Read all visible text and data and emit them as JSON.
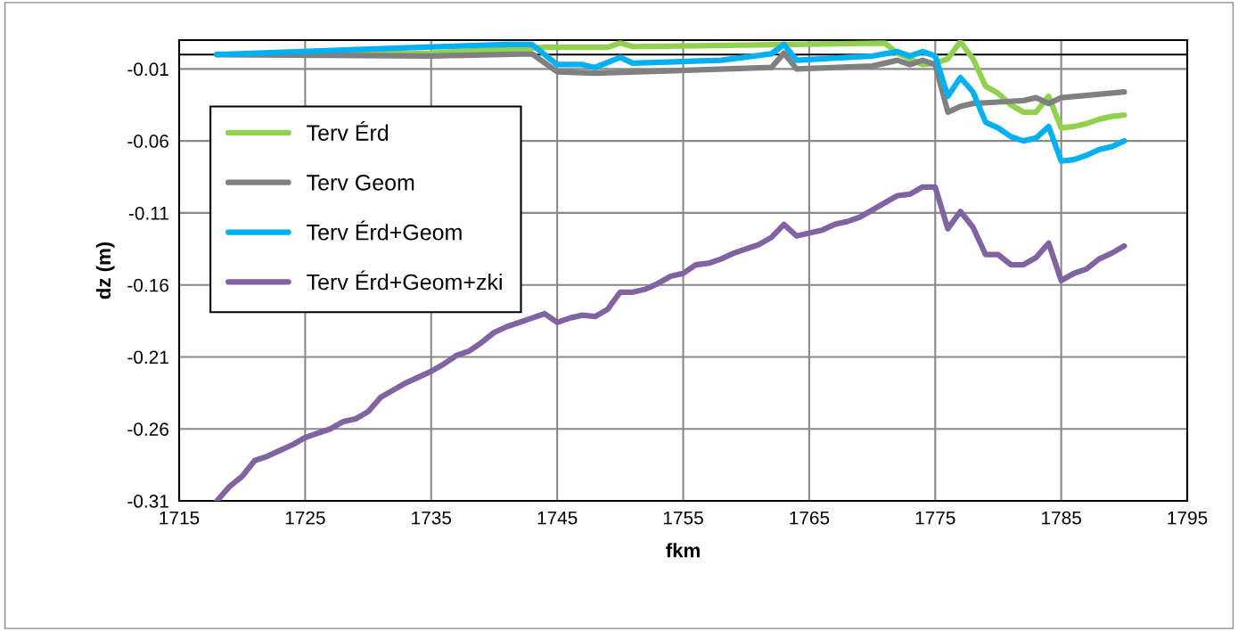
{
  "chart_data": {
    "type": "line",
    "xlabel": "fkm",
    "ylabel": "dz (m)",
    "xlim": [
      1715,
      1795
    ],
    "xticks": [
      1715,
      1725,
      1735,
      1745,
      1755,
      1765,
      1775,
      1785,
      1795
    ],
    "ylim": [
      -0.31,
      0.01
    ],
    "yticks": [
      -0.31,
      -0.26,
      -0.21,
      -0.16,
      -0.11,
      -0.06,
      -0.01
    ],
    "grid": true,
    "legend": "top left",
    "marker": "none",
    "line_style": "solid",
    "ref_lines": [
      {
        "axis": "y",
        "value": 0,
        "color": "#000000"
      }
    ],
    "series": [
      {
        "name": "Terv Érd",
        "color": "#92d050",
        "x": [
          1718,
          1735,
          1744,
          1749,
          1750,
          1751,
          1771,
          1772,
          1773,
          1774,
          1775,
          1776,
          1777,
          1778,
          1779,
          1780,
          1781,
          1782,
          1783,
          1784,
          1785,
          1786,
          1787,
          1788,
          1789,
          1790
        ],
        "values": [
          0,
          0.001,
          0.005,
          0.005,
          0.008,
          0.0055,
          0.008,
          0.001,
          -0.003,
          -0.007,
          -0.006,
          -0.003,
          0.009,
          -0.003,
          -0.022,
          -0.027,
          -0.035,
          -0.04,
          -0.04,
          -0.029,
          -0.051,
          -0.05,
          -0.048,
          -0.045,
          -0.043,
          -0.042
        ]
      },
      {
        "name": "Terv Geom",
        "color": "#808080",
        "x": [
          1718,
          1735,
          1743,
          1745,
          1748,
          1762,
          1763,
          1764,
          1770,
          1772,
          1773,
          1774,
          1775,
          1776,
          1777,
          1778,
          1780,
          1782,
          1783,
          1784,
          1785,
          1790
        ],
        "values": [
          0,
          -0.001,
          0.0005,
          -0.012,
          -0.013,
          -0.009,
          0.001,
          -0.01,
          -0.008,
          -0.004,
          -0.007,
          -0.004,
          -0.007,
          -0.04,
          -0.036,
          -0.034,
          -0.033,
          -0.032,
          -0.03,
          -0.034,
          -0.03,
          -0.026
        ]
      },
      {
        "name": "Terv Érd+Geom",
        "color": "#00b0f0",
        "x": [
          1718,
          1734,
          1741,
          1743,
          1745,
          1747,
          1748,
          1750,
          1751,
          1758,
          1762,
          1763,
          1764,
          1770,
          1772,
          1773,
          1774,
          1775,
          1776,
          1777,
          1778,
          1779,
          1780,
          1781,
          1782,
          1783,
          1784,
          1785,
          1786,
          1787,
          1788,
          1789,
          1790
        ],
        "values": [
          0,
          0.005,
          0.007,
          0.007,
          -0.007,
          -0.007,
          -0.009,
          -0.002,
          -0.006,
          -0.004,
          0.0005,
          0.007,
          -0.004,
          -0.001,
          0.002,
          -0.001,
          0.002,
          -0.001,
          -0.029,
          -0.016,
          -0.026,
          -0.047,
          -0.051,
          -0.057,
          -0.06,
          -0.058,
          -0.05,
          -0.074,
          -0.073,
          -0.07,
          -0.066,
          -0.064,
          -0.06
        ]
      },
      {
        "name": "Terv Érd+Geom+zki",
        "color": "#8064a2",
        "x": [
          1718,
          1719,
          1720,
          1721,
          1722,
          1723,
          1724,
          1725,
          1726,
          1727,
          1728,
          1729,
          1730,
          1731,
          1732,
          1733,
          1734,
          1735,
          1736,
          1737,
          1738,
          1739,
          1740,
          1741,
          1742,
          1743,
          1744,
          1745,
          1746,
          1747,
          1748,
          1749,
          1750,
          1751,
          1752,
          1753,
          1754,
          1755,
          1756,
          1757,
          1758,
          1759,
          1760,
          1761,
          1762,
          1763,
          1764,
          1765,
          1766,
          1767,
          1768,
          1769,
          1770,
          1771,
          1772,
          1773,
          1774,
          1775,
          1776,
          1777,
          1778,
          1779,
          1780,
          1781,
          1782,
          1783,
          1784,
          1785,
          1786,
          1787,
          1788,
          1789,
          1790
        ],
        "values": [
          -0.31,
          -0.3,
          -0.293,
          -0.282,
          -0.279,
          -0.275,
          -0.271,
          -0.266,
          -0.263,
          -0.26,
          -0.255,
          -0.253,
          -0.248,
          -0.238,
          -0.233,
          -0.228,
          -0.224,
          -0.22,
          -0.215,
          -0.209,
          -0.206,
          -0.2,
          -0.193,
          -0.189,
          -0.186,
          -0.183,
          -0.18,
          -0.186,
          -0.183,
          -0.181,
          -0.182,
          -0.177,
          -0.165,
          -0.165,
          -0.163,
          -0.159,
          -0.154,
          -0.152,
          -0.146,
          -0.145,
          -0.142,
          -0.138,
          -0.135,
          -0.132,
          -0.127,
          -0.118,
          -0.126,
          -0.124,
          -0.122,
          -0.118,
          -0.116,
          -0.113,
          -0.108,
          -0.103,
          -0.098,
          -0.097,
          -0.092,
          -0.092,
          -0.121,
          -0.109,
          -0.12,
          -0.139,
          -0.139,
          -0.146,
          -0.146,
          -0.141,
          -0.131,
          -0.157,
          -0.152,
          -0.149,
          -0.142,
          -0.138,
          -0.133
        ]
      }
    ]
  }
}
